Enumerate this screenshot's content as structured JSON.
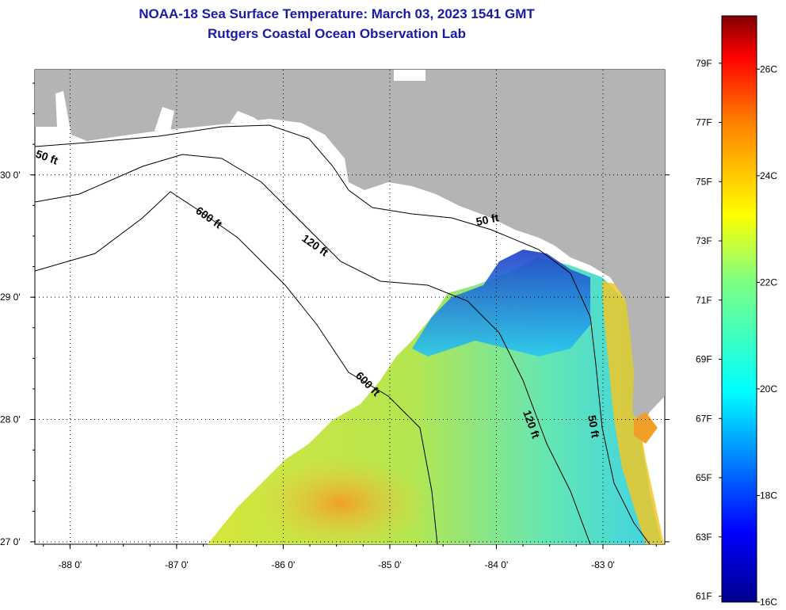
{
  "header": {
    "title": "NOAA-18 Sea Surface Temperature:  March 03, 2023 1541 GMT",
    "subtitle": "Rutgers Coastal Ocean Observation Lab"
  },
  "map": {
    "lon_range": [
      -88.33,
      -82.42
    ],
    "lat_range": [
      26.98,
      30.86
    ],
    "lon_ticks": [
      {
        "value": -88,
        "label": "-88 0'"
      },
      {
        "value": -87,
        "label": "-87 0'"
      },
      {
        "value": -86,
        "label": "-86 0'"
      },
      {
        "value": -85,
        "label": "-85 0'"
      },
      {
        "value": -84,
        "label": "-84 0'"
      },
      {
        "value": -83,
        "label": "-83 0'"
      }
    ],
    "lat_ticks": [
      {
        "value": 27,
        "label": "27 0'"
      },
      {
        "value": 28,
        "label": "28 0'"
      },
      {
        "value": 29,
        "label": "29 0'"
      },
      {
        "value": 30,
        "label": "30 0'"
      }
    ],
    "contour_labels": [
      "50 ft",
      "600 ft",
      "120 ft",
      "50 ft",
      "600 ft",
      "120 ft",
      "50 ft"
    ],
    "colors": {
      "land": "#b4b4b4",
      "no_data": "#ffffff",
      "title": "#1a1aa8"
    }
  },
  "colorbar": {
    "fahrenheit_labels": [
      "79F",
      "77F",
      "75F",
      "73F",
      "71F",
      "69F",
      "67F",
      "65F",
      "63F",
      "61F"
    ],
    "celsius_labels": [
      "26C",
      "24C",
      "22C",
      "20C",
      "18C",
      "16C"
    ],
    "range_c": [
      16,
      27
    ]
  }
}
